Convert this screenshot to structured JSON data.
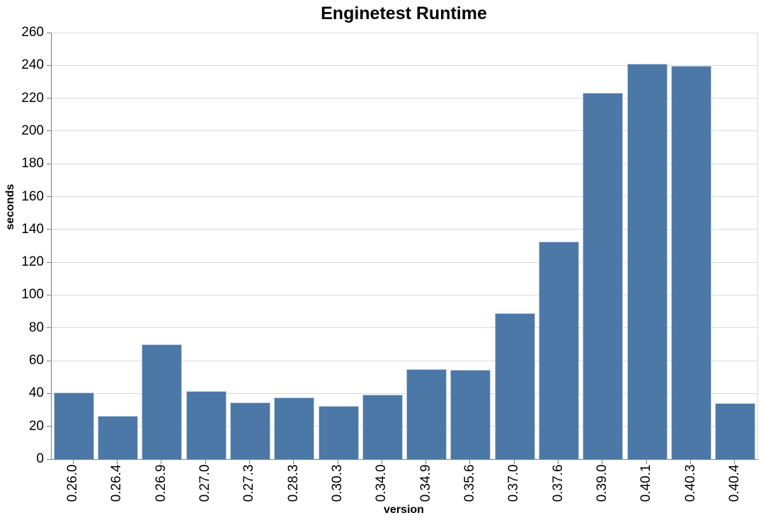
{
  "chart_data": {
    "type": "bar",
    "title": "Enginetest Runtime",
    "xlabel": "version",
    "ylabel": "seconds",
    "categories": [
      "0.26.0",
      "0.26.4",
      "0.26.9",
      "0.27.0",
      "0.27.3",
      "0.28.3",
      "0.30.3",
      "0.34.0",
      "0.34.9",
      "0.35.6",
      "0.37.0",
      "0.37.6",
      "0.39.0",
      "0.40.1",
      "0.40.3",
      "0.40.4"
    ],
    "values": [
      40.5,
      26.5,
      70,
      41.5,
      34.5,
      37.5,
      32.5,
      39.5,
      55,
      54.5,
      89,
      132.5,
      223.5,
      241,
      239.5,
      34
    ],
    "ylim": [
      0,
      260
    ],
    "ytick_step": 20,
    "yticks": [
      0,
      20,
      40,
      60,
      80,
      100,
      120,
      140,
      160,
      180,
      200,
      220,
      240,
      260
    ],
    "grid": "horizontal",
    "legend": "none",
    "colors": {
      "bar_fill": "#4c78a8",
      "bar_edge": "#bed1e3",
      "gridline": "#d9d9d9",
      "axis_line": "#808080",
      "text": "#000000"
    }
  }
}
